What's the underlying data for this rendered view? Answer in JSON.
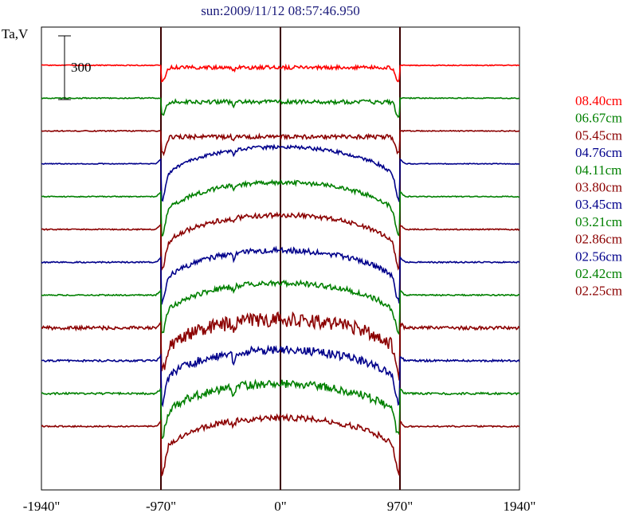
{
  "chart_data": {
    "type": "line",
    "title": "sun:2009/11/12 08:57:46.950",
    "ylabel": "Ta,V",
    "scale_bar_label": "300",
    "x_ticks": [
      "-1940\"",
      "-970\"",
      "0\"",
      "970\"",
      "1940\""
    ],
    "x_tick_values": [
      -1940,
      -970,
      0,
      970,
      1940
    ],
    "xlim": [
      -1940,
      1940
    ],
    "vlines": [
      -970,
      0,
      970
    ],
    "grid": false,
    "legend_placement": "right",
    "colors": {
      "red": "#ff0000",
      "green": "#008000",
      "darkred": "#8b0000",
      "blue": "#00008b",
      "vline": "#3a0000",
      "frame": "#000000"
    },
    "series": [
      {
        "name": "08.40cm",
        "color": "red",
        "profile": "flat",
        "depth": 0.25,
        "dip": 0.45,
        "noise": 0.3
      },
      {
        "name": "06.67cm",
        "color": "green",
        "profile": "flat",
        "depth": 0.45,
        "dip": 0.45,
        "noise": 0.35
      },
      {
        "name": "05.45cm",
        "color": "darkred",
        "profile": "flat",
        "depth": 0.7,
        "dip": 0.55,
        "noise": 0.35
      },
      {
        "name": "04.76cm",
        "color": "blue",
        "profile": "dome",
        "depth": 1.0,
        "dip": 0.6,
        "noise": 0.3
      },
      {
        "name": "04.11cm",
        "color": "green",
        "profile": "dome",
        "depth": 1.1,
        "dip": 0.6,
        "noise": 0.35
      },
      {
        "name": "03.80cm",
        "color": "darkred",
        "profile": "dome",
        "depth": 1.1,
        "dip": 0.6,
        "noise": 0.4
      },
      {
        "name": "03.45cm",
        "color": "blue",
        "profile": "dome",
        "depth": 1.2,
        "dip": 0.55,
        "noise": 0.45
      },
      {
        "name": "03.21cm",
        "color": "green",
        "profile": "dome",
        "depth": 1.2,
        "dip": 0.55,
        "noise": 0.45
      },
      {
        "name": "02.86cm",
        "color": "darkred",
        "profile": "dome",
        "depth": 1.35,
        "dip": 0.65,
        "noise": 1.2
      },
      {
        "name": "02.56cm",
        "color": "blue",
        "profile": "dome",
        "depth": 1.25,
        "dip": 0.6,
        "noise": 0.7
      },
      {
        "name": "02.42cm",
        "color": "green",
        "profile": "dome",
        "depth": 1.3,
        "dip": 0.6,
        "noise": 0.7
      },
      {
        "name": "02.25cm",
        "color": "darkred",
        "profile": "dome",
        "depth": 1.35,
        "dip": 0.7,
        "noise": 0.5
      }
    ]
  }
}
